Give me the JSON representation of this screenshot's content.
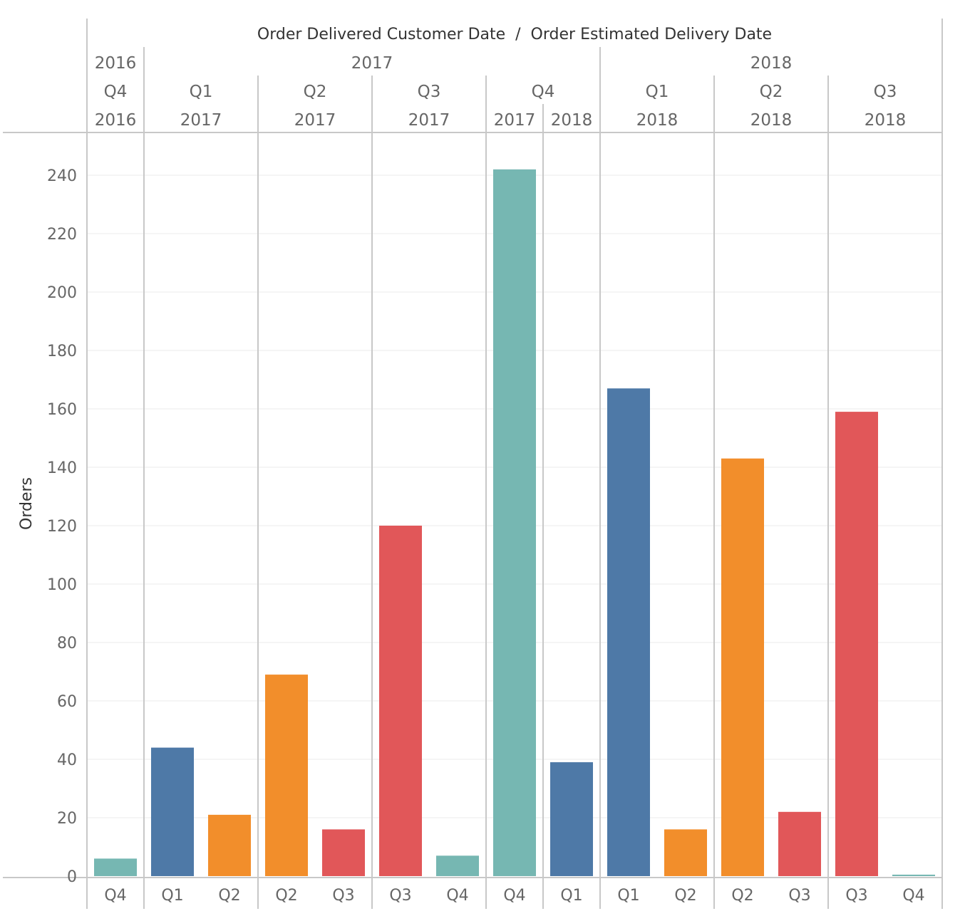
{
  "chart_data": {
    "type": "bar",
    "title": "Order Delivered Customer Date  /  Order Estimated Delivery Date",
    "ylabel": "Orders",
    "ylim": [
      0,
      250
    ],
    "yticks": [
      0,
      20,
      40,
      60,
      80,
      100,
      120,
      140,
      160,
      180,
      200,
      220,
      240
    ],
    "grid": true,
    "colors": {
      "Q1": "#4e79a7",
      "Q2": "#f28e2b",
      "Q3": "#e15759",
      "Q4": "#76b7b2"
    },
    "header": {
      "years": [
        {
          "label": "2016",
          "span": 1
        },
        {
          "label": "2017",
          "span": 4
        },
        {
          "label": "2018",
          "span": 3
        }
      ],
      "quarters": [
        {
          "label": "Q4",
          "cells": [
            "2016"
          ]
        },
        {
          "label": "Q1",
          "cells": [
            "2017"
          ]
        },
        {
          "label": "Q2",
          "cells": [
            "2017"
          ]
        },
        {
          "label": "Q3",
          "cells": [
            "2017"
          ]
        },
        {
          "label": "Q4",
          "cells": [
            "2017",
            "2018"
          ]
        },
        {
          "label": "Q1",
          "cells": [
            "2018"
          ]
        },
        {
          "label": "Q2",
          "cells": [
            "2018"
          ]
        },
        {
          "label": "Q3",
          "cells": [
            "2018"
          ]
        }
      ]
    },
    "bars": [
      {
        "group": 0,
        "label": "Q4",
        "value": 6
      },
      {
        "group": 1,
        "label": "Q1",
        "value": 44
      },
      {
        "group": 1,
        "label": "Q2",
        "value": 21
      },
      {
        "group": 2,
        "label": "Q2",
        "value": 69
      },
      {
        "group": 2,
        "label": "Q3",
        "value": 16
      },
      {
        "group": 3,
        "label": "Q3",
        "value": 120
      },
      {
        "group": 3,
        "label": "Q4",
        "value": 7
      },
      {
        "group": 4,
        "label": "Q4",
        "value": 242
      },
      {
        "group": 5,
        "label": "Q1",
        "value": 39
      },
      {
        "group": 6,
        "label": "Q1",
        "value": 167
      },
      {
        "group": 6,
        "label": "Q2",
        "value": 16
      },
      {
        "group": 7,
        "label": "Q2",
        "value": 143
      },
      {
        "group": 7,
        "label": "Q3",
        "value": 22
      },
      {
        "group": 8,
        "label": "Q3",
        "value": 159
      },
      {
        "group": 8,
        "label": "Q4",
        "value": 0.5
      }
    ]
  }
}
